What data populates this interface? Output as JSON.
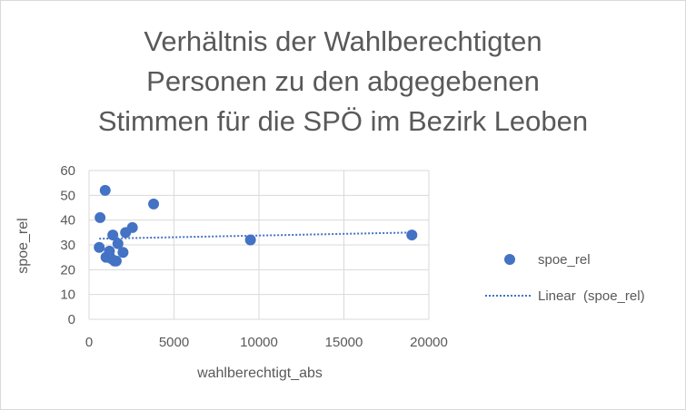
{
  "chart_data": {
    "type": "scatter",
    "title_lines": [
      "Verhältnis der Wahlberechtigten",
      "Personen zu den abgegebenen",
      "Stimmen für die SPÖ im Bezirk Leoben"
    ],
    "xlabel": "wahlberechtigt_abs",
    "ylabel": "spoe_rel",
    "xlim": [
      0,
      20000
    ],
    "ylim": [
      0,
      60
    ],
    "xticks": [
      0,
      5000,
      10000,
      15000,
      20000
    ],
    "yticks": [
      0,
      10,
      20,
      30,
      40,
      50,
      60
    ],
    "grid": true,
    "legend_position": "right",
    "series": [
      {
        "name": "spoe_rel",
        "color": "#4472c4",
        "points": [
          {
            "x": 600,
            "y": 29
          },
          {
            "x": 650,
            "y": 41
          },
          {
            "x": 950,
            "y": 52
          },
          {
            "x": 1000,
            "y": 25
          },
          {
            "x": 1200,
            "y": 27.5
          },
          {
            "x": 1300,
            "y": 24.5
          },
          {
            "x": 1400,
            "y": 34
          },
          {
            "x": 1500,
            "y": 23.5
          },
          {
            "x": 1600,
            "y": 23.5
          },
          {
            "x": 1700,
            "y": 30.5
          },
          {
            "x": 2000,
            "y": 27
          },
          {
            "x": 2150,
            "y": 35
          },
          {
            "x": 2550,
            "y": 37
          },
          {
            "x": 3800,
            "y": 46.5
          },
          {
            "x": 9500,
            "y": 32
          },
          {
            "x": 19000,
            "y": 34
          }
        ]
      }
    ],
    "trendline": {
      "name": "Linear  (spoe_rel)",
      "type": "linear",
      "color": "#4472c4",
      "x_range": [
        600,
        19000
      ],
      "y_values": [
        32.5,
        35
      ]
    }
  }
}
